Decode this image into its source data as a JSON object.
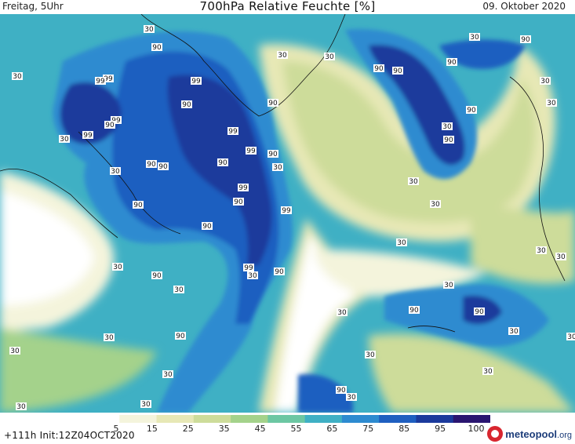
{
  "header": {
    "left": "Freitag, 5Uhr",
    "title": "700hPa Relative Feuchte [%]",
    "right": "09. Oktober 2020"
  },
  "colorbar": {
    "ticks": [
      "5",
      "15",
      "25",
      "35",
      "45",
      "55",
      "65",
      "75",
      "85",
      "95",
      "100"
    ],
    "colors": [
      "#ffffff",
      "#f4f4dc",
      "#e7e8b6",
      "#cddc9a",
      "#a4d28b",
      "#6cc7a3",
      "#3fb0c4",
      "#2d8bd0",
      "#1f5fc0",
      "#1b3a9c",
      "#2a1570"
    ]
  },
  "footer": {
    "run_info": "+111h  Init:12Z04OCT2020",
    "logo_name": "meteopool",
    "logo_tld": ".org"
  },
  "map_labels": {
    "label_30": "30",
    "label_90": "90",
    "label_99": "99"
  }
}
